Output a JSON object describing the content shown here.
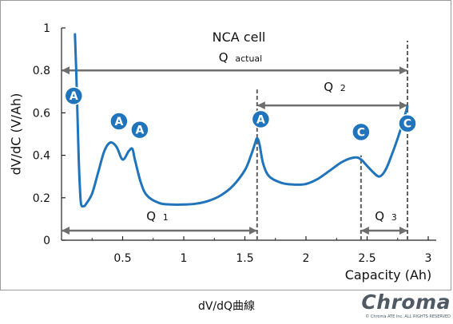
{
  "chart_data": {
    "type": "line",
    "title": "NCA cell",
    "xlabel": "Capacity (Ah)",
    "ylabel": "dV/dC (V/Ah)",
    "xlim": [
      0,
      3
    ],
    "ylim": [
      0,
      1
    ],
    "x_ticks": [
      "0.5",
      "1",
      "1.5",
      "2",
      "2.5",
      "3"
    ],
    "y_ticks": [
      "0",
      "0.2",
      "0.4",
      "0.6",
      "0.8",
      "1"
    ],
    "grid": "none",
    "series": [
      {
        "color": "#1f74bb",
        "x": [
          0.11,
          0.12,
          0.13,
          0.14,
          0.15,
          0.16,
          0.18,
          0.2,
          0.25,
          0.3,
          0.35,
          0.4,
          0.45,
          0.5,
          0.55,
          0.58,
          0.6,
          0.65,
          0.7,
          0.8,
          0.9,
          1.0,
          1.1,
          1.2,
          1.3,
          1.4,
          1.5,
          1.55,
          1.58,
          1.6,
          1.62,
          1.65,
          1.7,
          1.8,
          1.9,
          2.0,
          2.1,
          2.2,
          2.3,
          2.4,
          2.45,
          2.5,
          2.55,
          2.6,
          2.65,
          2.7,
          2.75,
          2.8,
          2.83
        ],
        "y": [
          0.97,
          0.8,
          0.6,
          0.4,
          0.25,
          0.17,
          0.16,
          0.17,
          0.22,
          0.32,
          0.42,
          0.46,
          0.44,
          0.38,
          0.42,
          0.43,
          0.38,
          0.27,
          0.21,
          0.175,
          0.168,
          0.168,
          0.172,
          0.185,
          0.21,
          0.255,
          0.33,
          0.4,
          0.45,
          0.48,
          0.45,
          0.36,
          0.3,
          0.27,
          0.262,
          0.265,
          0.29,
          0.33,
          0.37,
          0.39,
          0.38,
          0.35,
          0.32,
          0.3,
          0.33,
          0.4,
          0.48,
          0.57,
          0.63
        ]
      }
    ],
    "annotations": {
      "title": "NCA cell",
      "q_actual_main": "Q",
      "q_actual_sub": "actual",
      "q1_main": "Q",
      "q1_sub": "1",
      "q2_main": "Q",
      "q2_sub": "2",
      "q3_main": "Q",
      "q3_sub": "3"
    },
    "markers": [
      {
        "label": "A",
        "x": 0.1,
        "y": 0.68,
        "color": "#1f74bb"
      },
      {
        "label": "A",
        "x": 0.47,
        "y": 0.56,
        "color": "#1f74bb"
      },
      {
        "label": "A",
        "x": 0.64,
        "y": 0.52,
        "color": "#1f74bb"
      },
      {
        "label": "A",
        "x": 1.63,
        "y": 0.57,
        "color": "#1f74bb"
      },
      {
        "label": "C",
        "x": 2.45,
        "y": 0.51,
        "color": "#1f74bb"
      },
      {
        "label": "C",
        "x": 2.83,
        "y": 0.55,
        "color": "#1f74bb"
      }
    ],
    "vlines": [
      {
        "x": 1.6,
        "y_top": 0.71
      },
      {
        "x": 2.45,
        "y_top": 0.4
      },
      {
        "x": 2.83,
        "y_top": 0.94
      }
    ],
    "arrows": [
      {
        "name": "q-actual",
        "x0": 0.0,
        "x1": 2.83,
        "y": 0.8
      },
      {
        "name": "q1",
        "x0": 0.0,
        "x1": 1.6,
        "y": 0.045
      },
      {
        "name": "q2",
        "x0": 1.6,
        "x1": 2.83,
        "y": 0.635
      },
      {
        "name": "q3",
        "x0": 2.45,
        "x1": 2.83,
        "y": 0.045
      }
    ]
  },
  "caption": "dV/dQ曲線",
  "brand": {
    "name": "Chroma",
    "copyright": "© Chroma ATE Inc. ALL RIGHTS RESERVED"
  },
  "colors": {
    "curve": "#1f74bb",
    "badge": "#1f74bb",
    "arrow": "#6e6e6e",
    "dash": "#5e5e5e"
  }
}
